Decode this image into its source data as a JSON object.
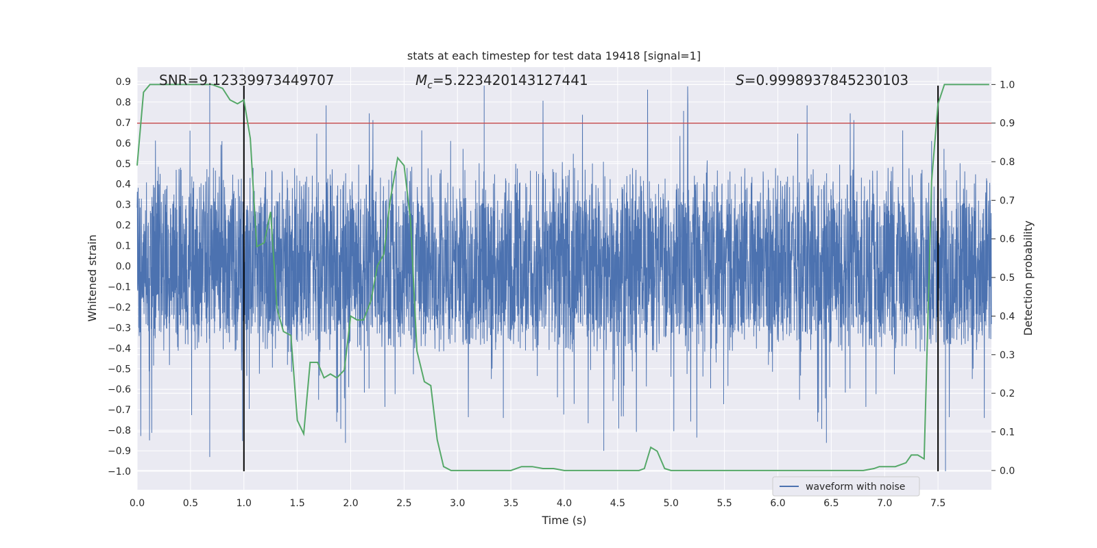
{
  "chart_data": {
    "type": "line",
    "title": "stats at each timestep for test data 19418 [signal=1]",
    "xlabel": "Time (s)",
    "ylabel": "Whitened strain",
    "y2label": "Detection probability",
    "xlim": [
      0.0,
      8.0
    ],
    "ylim": [
      -1.09,
      0.97
    ],
    "y2lim": [
      -0.05,
      1.045
    ],
    "x_ticks": [
      "0.0",
      "0.5",
      "1.0",
      "1.5",
      "2.0",
      "2.5",
      "3.0",
      "3.5",
      "4.0",
      "4.5",
      "5.0",
      "5.5",
      "6.0",
      "6.5",
      "7.0",
      "7.5"
    ],
    "y_ticks": [
      "0.9",
      "0.8",
      "0.7",
      "0.6",
      "0.5",
      "0.4",
      "0.3",
      "0.2",
      "0.1",
      "0.0",
      "−0.1",
      "−0.2",
      "−0.3",
      "−0.4",
      "−0.5",
      "−0.6",
      "−0.7",
      "−0.8",
      "−0.9",
      "−1.0"
    ],
    "y2_ticks": [
      "1.0",
      "0.9",
      "0.8",
      "0.7",
      "0.6",
      "0.5",
      "0.4",
      "0.3",
      "0.2",
      "0.1",
      "0.0"
    ],
    "grid": true,
    "legend": {
      "entries": [
        "waveform with noise"
      ],
      "position": "lower-right"
    },
    "annotations": {
      "snr": "SNR=9.12339973449707",
      "mc_symbol": "M",
      "mc_sub": "c",
      "mc_value": "=5.223420143127441",
      "s_symbol": "S",
      "s_value": "=0.9998937845230103"
    },
    "waveform": {
      "name": "waveform with noise",
      "color": "#4c72b0",
      "noise_envelope_low": -0.42,
      "noise_envelope_high": 0.3,
      "max": 0.88,
      "min": -1.0,
      "duration_s": 8.0
    },
    "threshold": {
      "y2": 0.9,
      "color": "#c44e52"
    },
    "vertical_lines": [
      {
        "x": 1.0,
        "y_bottom": -1.0,
        "y_top": 0.88,
        "color": "#000000"
      },
      {
        "x": 7.5,
        "y_bottom": -1.0,
        "y_top": 0.88,
        "color": "#000000"
      }
    ],
    "detection_probability": {
      "name": "detection probability",
      "color": "#55a868",
      "x": [
        0.0,
        0.06,
        0.12,
        0.2,
        0.3,
        0.4,
        0.5,
        0.6,
        0.7,
        0.8,
        0.87,
        0.94,
        1.0,
        1.06,
        1.12,
        1.19,
        1.25,
        1.31,
        1.37,
        1.44,
        1.5,
        1.56,
        1.62,
        1.69,
        1.75,
        1.81,
        1.87,
        1.94,
        2.0,
        2.06,
        2.12,
        2.19,
        2.25,
        2.31,
        2.37,
        2.44,
        2.5,
        2.56,
        2.62,
        2.69,
        2.75,
        2.81,
        2.87,
        2.94,
        3.0,
        3.1,
        3.2,
        3.3,
        3.4,
        3.5,
        3.6,
        3.7,
        3.8,
        3.9,
        4.0,
        4.1,
        4.2,
        4.3,
        4.4,
        4.5,
        4.6,
        4.7,
        4.75,
        4.81,
        4.87,
        4.94,
        5.0,
        5.1,
        5.2,
        5.3,
        5.4,
        5.5,
        5.6,
        5.7,
        5.8,
        5.9,
        6.0,
        6.2,
        6.4,
        6.6,
        6.8,
        6.9,
        6.95,
        7.0,
        7.1,
        7.2,
        7.25,
        7.31,
        7.37,
        7.44,
        7.5,
        7.56,
        7.62,
        7.7,
        7.85,
        7.98
      ],
      "y": [
        0.79,
        0.98,
        1.0,
        1.0,
        1.0,
        1.0,
        1.0,
        1.0,
        1.0,
        0.99,
        0.96,
        0.95,
        0.96,
        0.86,
        0.58,
        0.59,
        0.67,
        0.42,
        0.36,
        0.35,
        0.13,
        0.095,
        0.28,
        0.28,
        0.24,
        0.25,
        0.24,
        0.26,
        0.4,
        0.39,
        0.39,
        0.44,
        0.53,
        0.56,
        0.7,
        0.81,
        0.79,
        0.65,
        0.31,
        0.23,
        0.22,
        0.08,
        0.01,
        0.0,
        0.0,
        0.0,
        0.0,
        0.0,
        0.0,
        0.0,
        0.01,
        0.01,
        0.005,
        0.005,
        0.0,
        0.0,
        0.0,
        0.0,
        0.0,
        0.0,
        0.0,
        0.0,
        0.005,
        0.06,
        0.05,
        0.005,
        0.0,
        0.0,
        0.0,
        0.0,
        0.0,
        0.0,
        0.0,
        0.0,
        0.0,
        0.0,
        0.0,
        0.0,
        0.0,
        0.0,
        0.0,
        0.005,
        0.01,
        0.01,
        0.01,
        0.02,
        0.04,
        0.04,
        0.03,
        0.75,
        0.95,
        1.0,
        1.0,
        1.0,
        1.0,
        1.0
      ]
    }
  }
}
